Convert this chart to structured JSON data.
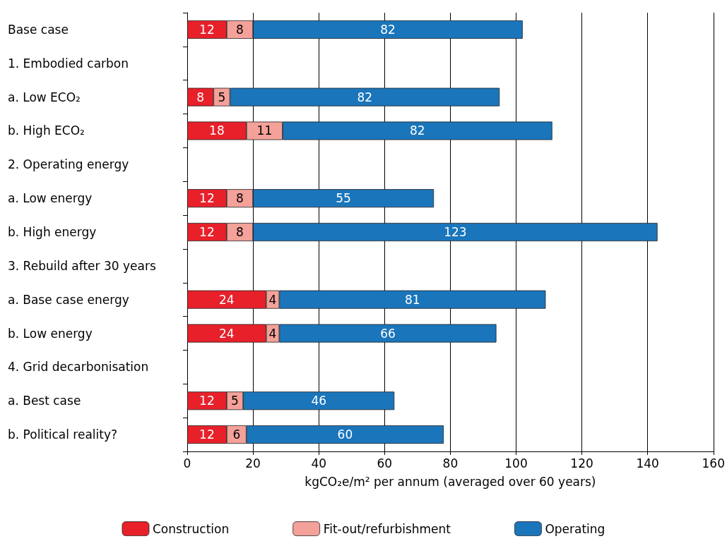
{
  "chart_data": {
    "type": "bar",
    "orientation": "horizontal",
    "stacked": true,
    "categories": [
      "Base case",
      "1. Embodied carbon",
      "a. Low ECO₂",
      "b. High ECO₂",
      "2. Operating energy",
      "a. Low energy",
      "b. High energy",
      "3. Rebuild after 30 years",
      "a. Base case energy",
      "b. Low energy",
      "4. Grid decarbonisation",
      "a. Best case",
      "b. Political reality?"
    ],
    "series": [
      {
        "name": "Construction",
        "color": "#e8202a",
        "values": [
          12,
          null,
          8,
          18,
          null,
          12,
          12,
          null,
          24,
          24,
          null,
          12,
          12
        ]
      },
      {
        "name": "Fit-out/refurbishment",
        "color": "#f4a19a",
        "values": [
          8,
          null,
          5,
          11,
          null,
          8,
          8,
          null,
          4,
          4,
          null,
          5,
          6
        ]
      },
      {
        "name": "Operating",
        "color": "#1a75bb",
        "values": [
          82,
          null,
          82,
          82,
          null,
          55,
          123,
          null,
          81,
          66,
          null,
          46,
          60
        ]
      }
    ],
    "xlabel": "kgCO₂e/m² per annum (averaged over 60 years)",
    "xlim": [
      0,
      160
    ],
    "xticks": [
      0,
      20,
      40,
      60,
      80,
      100,
      120,
      140,
      160
    ],
    "grid": "x",
    "legend": "bottom",
    "data_labels": true
  }
}
